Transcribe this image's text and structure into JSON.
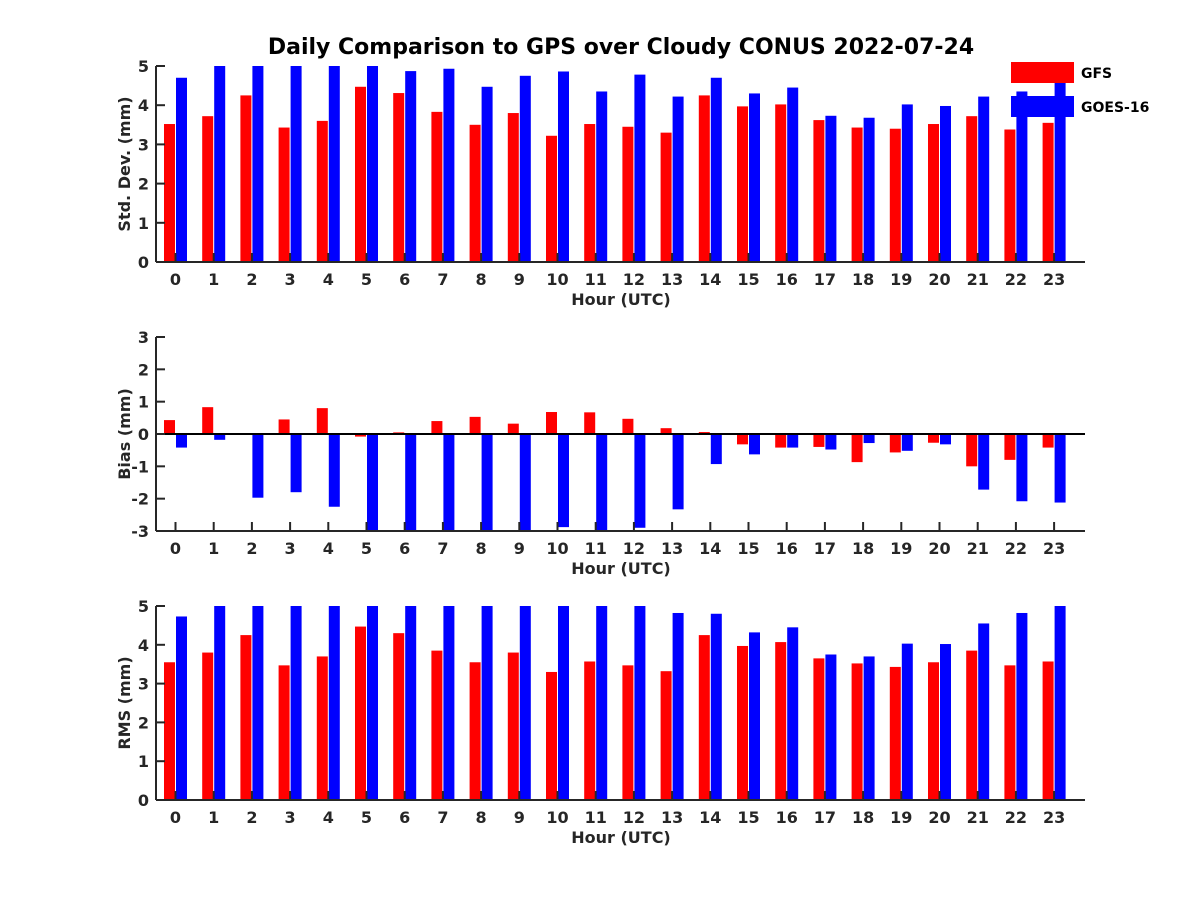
{
  "chart_data": {
    "type": "bar",
    "title": "Daily Comparison to GPS over Cloudy CONUS 2022-07-24",
    "colors": {
      "GFS": "#ff0000",
      "GOES-16": "#0000ff"
    },
    "legend": {
      "placement": "top-right",
      "entries": [
        "GFS",
        "GOES-16"
      ]
    },
    "categories": [
      "0",
      "1",
      "2",
      "3",
      "4",
      "5",
      "6",
      "7",
      "8",
      "9",
      "10",
      "11",
      "12",
      "13",
      "14",
      "15",
      "16",
      "17",
      "18",
      "19",
      "20",
      "21",
      "22",
      "23"
    ],
    "panels": [
      {
        "ylabel": "Std. Dev. (mm)",
        "xlabel": "Hour (UTC)",
        "ylim": [
          0,
          5
        ],
        "yticks": [
          "0",
          "1",
          "2",
          "3",
          "4",
          "5"
        ],
        "zero_line": false,
        "series": [
          {
            "name": "GFS",
            "values": [
              3.52,
              3.72,
              4.25,
              3.43,
              3.6,
              4.47,
              4.31,
              3.83,
              3.5,
              3.8,
              3.22,
              3.52,
              3.45,
              3.3,
              4.25,
              3.97,
              4.02,
              3.62,
              3.43,
              3.4,
              3.52,
              3.72,
              3.38,
              3.55
            ]
          },
          {
            "name": "GOES-16",
            "values": [
              4.7,
              5.0,
              5.0,
              5.0,
              5.0,
              5.0,
              4.87,
              4.93,
              4.47,
              4.75,
              4.86,
              4.35,
              4.78,
              4.22,
              4.7,
              4.3,
              4.45,
              3.73,
              3.68,
              4.02,
              3.98,
              4.22,
              4.35,
              4.65
            ]
          }
        ]
      },
      {
        "ylabel": "Bias (mm)",
        "xlabel": "Hour (UTC)",
        "ylim": [
          -3,
          3
        ],
        "yticks": [
          "-3",
          "-2",
          "-1",
          "0",
          "1",
          "2",
          "3"
        ],
        "zero_line": true,
        "series": [
          {
            "name": "GFS",
            "values": [
              0.43,
              0.83,
              -0.03,
              0.45,
              0.8,
              -0.08,
              0.05,
              0.4,
              0.53,
              0.32,
              0.68,
              0.67,
              0.47,
              0.18,
              0.06,
              -0.32,
              -0.42,
              -0.4,
              -0.87,
              -0.57,
              -0.27,
              -1.0,
              -0.8,
              -0.42
            ]
          },
          {
            "name": "GOES-16",
            "values": [
              -0.42,
              -0.18,
              -1.97,
              -1.8,
              -2.25,
              -3.0,
              -3.0,
              -3.0,
              -3.0,
              -3.0,
              -2.88,
              -3.0,
              -2.9,
              -2.33,
              -0.93,
              -0.63,
              -0.42,
              -0.48,
              -0.28,
              -0.52,
              -0.32,
              -1.72,
              -2.08,
              -2.12
            ]
          }
        ]
      },
      {
        "ylabel": "RMS (mm)",
        "xlabel": "Hour (UTC)",
        "ylim": [
          0,
          5
        ],
        "yticks": [
          "0",
          "1",
          "2",
          "3",
          "4",
          "5"
        ],
        "zero_line": false,
        "series": [
          {
            "name": "GFS",
            "values": [
              3.55,
              3.8,
              4.25,
              3.47,
              3.7,
              4.47,
              4.3,
              3.85,
              3.55,
              3.8,
              3.3,
              3.57,
              3.47,
              3.32,
              4.25,
              3.97,
              4.07,
              3.65,
              3.52,
              3.43,
              3.55,
              3.85,
              3.47,
              3.57
            ]
          },
          {
            "name": "GOES-16",
            "values": [
              4.73,
              5.0,
              5.0,
              5.0,
              5.0,
              5.0,
              5.0,
              5.0,
              5.0,
              5.0,
              5.0,
              5.0,
              5.0,
              4.82,
              4.8,
              4.32,
              4.45,
              3.75,
              3.7,
              4.03,
              4.02,
              4.55,
              4.82,
              5.0
            ]
          }
        ]
      }
    ]
  }
}
